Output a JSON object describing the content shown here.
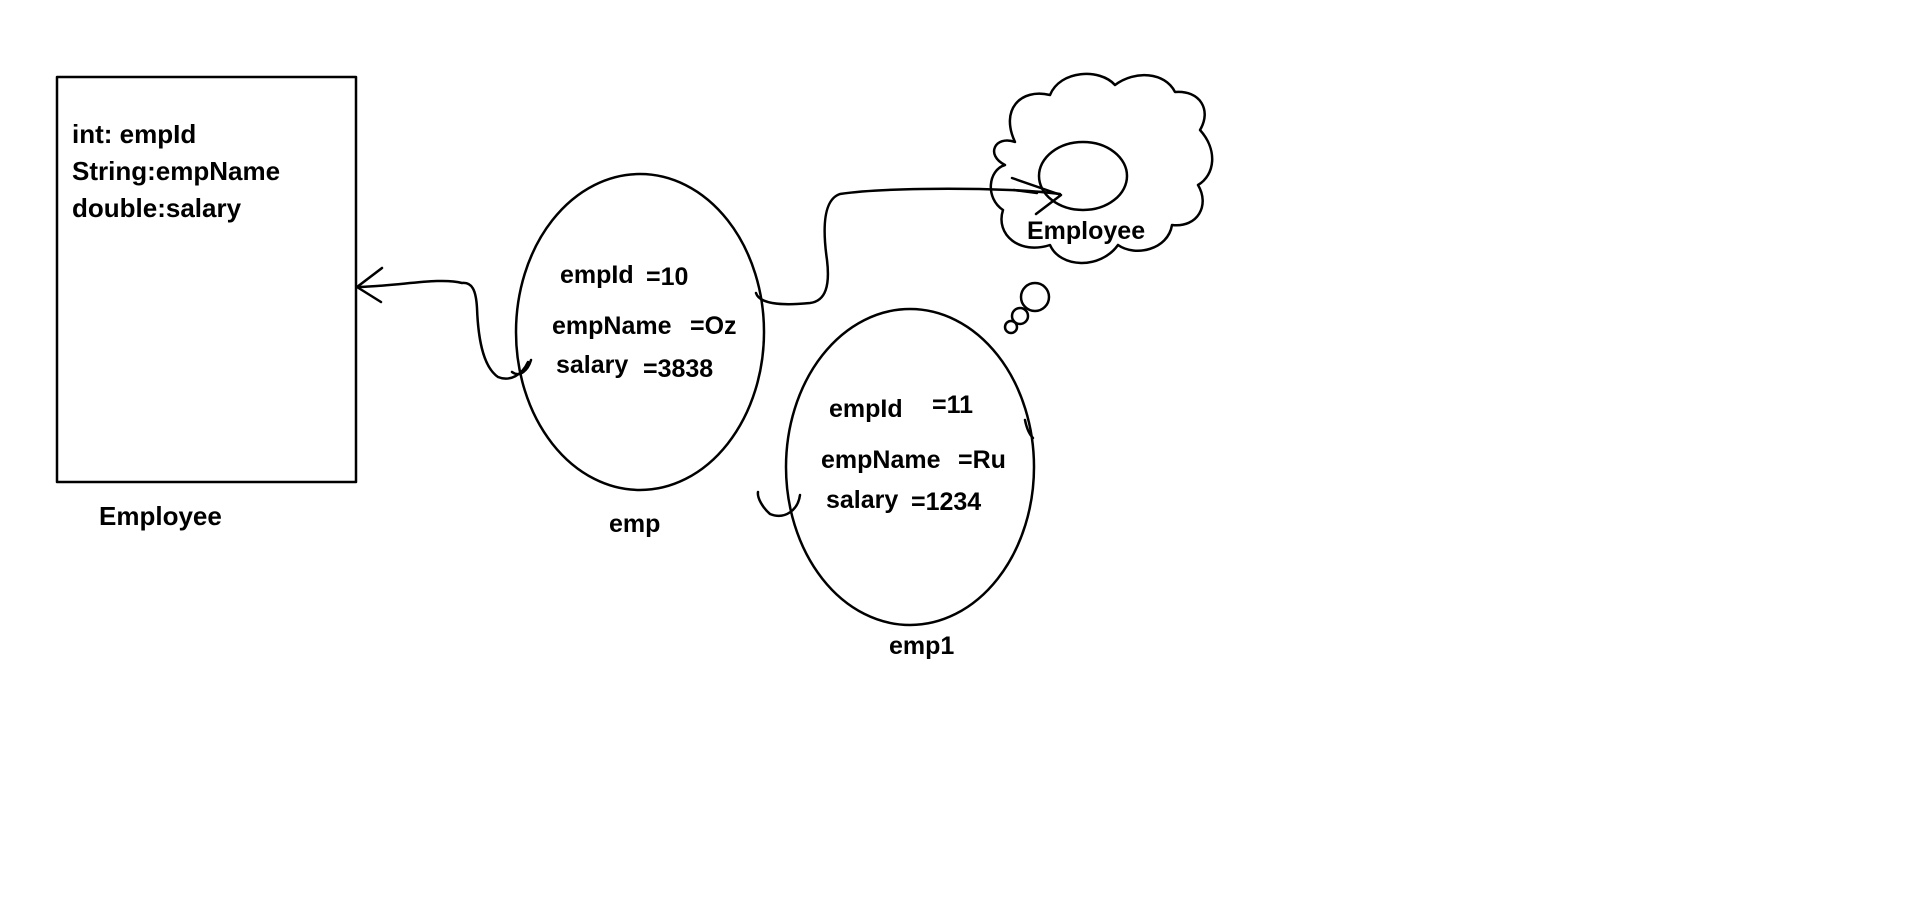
{
  "class_box": {
    "fields": [
      "int: empId",
      "String:empName",
      "double:salary"
    ],
    "caption": "Employee"
  },
  "objects": [
    {
      "name": "emp",
      "fields": [
        {
          "key": "empId",
          "value": "=10"
        },
        {
          "key": "empName",
          "value": "=Oz"
        },
        {
          "key": "salary",
          "value": "=3838"
        }
      ]
    },
    {
      "name": "emp1",
      "fields": [
        {
          "key": "empId",
          "value": "=11"
        },
        {
          "key": "empName",
          "value": "=Ru"
        },
        {
          "key": "salary",
          "value": "=1234"
        }
      ]
    }
  ],
  "thought_cloud": {
    "label": "Employee"
  }
}
